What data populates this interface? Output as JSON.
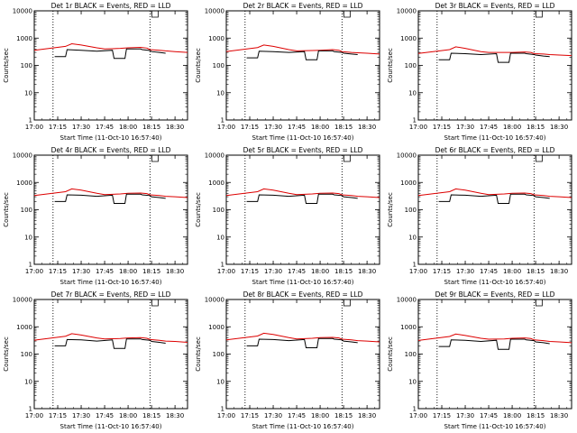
{
  "colors": {
    "events": "#000000",
    "lld": "#dd0000",
    "frame": "#000000",
    "background": "#ffffff"
  },
  "chart_data": [
    {
      "type": "line",
      "title": "Det 1r BLACK = Events, RED = LLD",
      "xlabel": "Start Time (11-Oct-10 16:57:40)",
      "ylabel": "Counts/sec",
      "yscale": "log",
      "ylim": [
        1,
        10000
      ],
      "xlim": [
        "17:00",
        "18:38"
      ],
      "x_ticks": [
        "17:00",
        "17:15",
        "17:30",
        "17:45",
        "18:00",
        "18:15",
        "18:30"
      ],
      "y_ticks": [
        "1",
        "10",
        "100",
        "1000",
        "10000"
      ],
      "vlines_dotted": [
        "17:12",
        "18:14"
      ],
      "series": [
        {
          "x": [
            "17:00",
            "17:08",
            "17:12",
            "17:20",
            "17:24",
            "17:30",
            "17:40",
            "17:45",
            "17:55",
            "18:00",
            "18:08",
            "18:12",
            "18:14",
            "18:20",
            "18:24",
            "18:30",
            "18:38"
          ],
          "values": [
            null,
            null,
            null,
            500,
            620,
            560,
            440,
            400,
            420,
            440,
            460,
            430,
            380,
            360,
            340,
            320,
            300
          ]
        },
        {
          "x": [
            "17:12",
            "17:13",
            "17:20",
            "17:21",
            "17:30",
            "17:40",
            "17:50",
            "17:51",
            "17:58",
            "17:59",
            "18:08",
            "18:09",
            "18:14",
            "18:15",
            "18:20",
            "18:24"
          ],
          "values": [
            null,
            210,
            210,
            380,
            360,
            330,
            360,
            180,
            180,
            400,
            400,
            380,
            350,
            320,
            300,
            280
          ]
        }
      ]
    },
    {
      "type": "line",
      "title": "Det 2r BLACK = Events, RED = LLD",
      "xlabel": "Start Time (11-Oct-10 16:57:40)",
      "ylabel": "Counts/sec",
      "yscale": "log",
      "ylim": [
        1,
        10000
      ],
      "xlim": [
        "17:00",
        "18:38"
      ],
      "x_ticks": [
        "17:00",
        "17:15",
        "17:30",
        "17:45",
        "18:00",
        "18:15",
        "18:30"
      ],
      "y_ticks": [
        "1",
        "10",
        "100",
        "1000",
        "10000"
      ],
      "vlines_dotted": [
        "17:12",
        "18:14"
      ],
      "series": [
        {
          "x": [
            "17:00",
            "17:08",
            "17:12",
            "17:20",
            "17:24",
            "17:30",
            "17:40",
            "17:45",
            "17:55",
            "18:00",
            "18:08",
            "18:12",
            "18:14",
            "18:20",
            "18:24",
            "18:30",
            "18:38"
          ],
          "values": [
            null,
            null,
            null,
            450,
            560,
            500,
            380,
            340,
            350,
            360,
            380,
            360,
            320,
            300,
            290,
            280,
            260
          ]
        },
        {
          "x": [
            "17:12",
            "17:13",
            "17:20",
            "17:21",
            "17:30",
            "17:40",
            "17:50",
            "17:51",
            "17:58",
            "17:59",
            "18:08",
            "18:09",
            "18:14",
            "18:15",
            "18:20",
            "18:24"
          ],
          "values": [
            null,
            190,
            190,
            330,
            320,
            300,
            320,
            160,
            160,
            340,
            340,
            320,
            300,
            280,
            260,
            250
          ]
        }
      ]
    },
    {
      "type": "line",
      "title": "Det 3r BLACK = Events, RED = LLD",
      "xlabel": "Start Time (11-Oct-10 16:57:40)",
      "ylabel": "Counts/sec",
      "yscale": "log",
      "ylim": [
        1,
        10000
      ],
      "xlim": [
        "17:00",
        "18:38"
      ],
      "x_ticks": [
        "17:00",
        "17:15",
        "17:30",
        "17:45",
        "18:00",
        "18:15",
        "18:30"
      ],
      "y_ticks": [
        "1",
        "10",
        "100",
        "1000",
        "10000"
      ],
      "vlines_dotted": [
        "17:12",
        "18:14"
      ],
      "series": [
        {
          "x": [
            "17:00",
            "17:08",
            "17:12",
            "17:20",
            "17:24",
            "17:30",
            "17:40",
            "17:45",
            "17:55",
            "18:00",
            "18:08",
            "18:12",
            "18:14",
            "18:20",
            "18:24",
            "18:30",
            "18:38"
          ],
          "values": [
            null,
            null,
            null,
            380,
            480,
            420,
            320,
            300,
            300,
            300,
            310,
            300,
            270,
            260,
            250,
            240,
            230
          ]
        },
        {
          "x": [
            "17:12",
            "17:13",
            "17:20",
            "17:21",
            "17:30",
            "17:40",
            "17:50",
            "17:51",
            "17:58",
            "17:59",
            "18:08",
            "18:09",
            "18:14",
            "18:15",
            "18:20",
            "18:24"
          ],
          "values": [
            null,
            160,
            160,
            280,
            270,
            250,
            270,
            130,
            130,
            280,
            280,
            270,
            250,
            240,
            220,
            210
          ]
        }
      ]
    },
    {
      "type": "line",
      "title": "Det 4r BLACK = Events, RED = LLD",
      "xlabel": "Start Time (11-Oct-10 16:57:40)",
      "ylabel": "Counts/sec",
      "yscale": "log",
      "ylim": [
        1,
        10000
      ],
      "xlim": [
        "17:00",
        "18:38"
      ],
      "x_ticks": [
        "17:00",
        "17:15",
        "17:30",
        "17:45",
        "18:00",
        "18:15",
        "18:30"
      ],
      "y_ticks": [
        "1",
        "10",
        "100",
        "1000",
        "10000"
      ],
      "vlines_dotted": [
        "17:12",
        "18:14"
      ],
      "series": [
        {
          "x": [
            "17:00",
            "17:08",
            "17:12",
            "17:20",
            "17:24",
            "17:30",
            "17:40",
            "17:45",
            "17:55",
            "18:00",
            "18:08",
            "18:12",
            "18:14",
            "18:20",
            "18:24",
            "18:30",
            "18:38"
          ],
          "values": [
            null,
            null,
            null,
            460,
            580,
            520,
            400,
            360,
            380,
            400,
            410,
            390,
            350,
            330,
            310,
            300,
            280
          ]
        },
        {
          "x": [
            "17:12",
            "17:13",
            "17:20",
            "17:21",
            "17:30",
            "17:40",
            "17:50",
            "17:51",
            "17:58",
            "17:59",
            "18:08",
            "18:09",
            "18:14",
            "18:15",
            "18:20",
            "18:24"
          ],
          "values": [
            null,
            200,
            200,
            350,
            340,
            310,
            340,
            170,
            170,
            370,
            370,
            350,
            330,
            300,
            280,
            260
          ]
        }
      ]
    },
    {
      "type": "line",
      "title": "Det 5r BLACK = Events, RED = LLD",
      "xlabel": "Start Time (11-Oct-10 16:57:40)",
      "ylabel": "Counts/sec",
      "yscale": "log",
      "ylim": [
        1,
        10000
      ],
      "xlim": [
        "17:00",
        "18:38"
      ],
      "x_ticks": [
        "17:00",
        "17:15",
        "17:30",
        "17:45",
        "18:00",
        "18:15",
        "18:30"
      ],
      "y_ticks": [
        "1",
        "10",
        "100",
        "1000",
        "10000"
      ],
      "vlines_dotted": [
        "17:12",
        "18:14"
      ],
      "series": [
        {
          "x": [
            "17:00",
            "17:08",
            "17:12",
            "17:20",
            "17:24",
            "17:30",
            "17:40",
            "17:45",
            "17:55",
            "18:00",
            "18:08",
            "18:12",
            "18:14",
            "18:20",
            "18:24",
            "18:30",
            "18:38"
          ],
          "values": [
            null,
            null,
            null,
            460,
            580,
            520,
            400,
            360,
            380,
            400,
            410,
            390,
            350,
            330,
            310,
            300,
            280
          ]
        },
        {
          "x": [
            "17:12",
            "17:13",
            "17:20",
            "17:21",
            "17:30",
            "17:40",
            "17:50",
            "17:51",
            "17:58",
            "17:59",
            "18:08",
            "18:09",
            "18:14",
            "18:15",
            "18:20",
            "18:24"
          ],
          "values": [
            null,
            200,
            200,
            350,
            340,
            310,
            340,
            170,
            170,
            370,
            370,
            350,
            330,
            300,
            280,
            260
          ]
        }
      ]
    },
    {
      "type": "line",
      "title": "Det 6r BLACK = Events, RED = LLD",
      "xlabel": "Start Time (11-Oct-10 16:57:40)",
      "ylabel": "Counts/sec",
      "yscale": "log",
      "ylim": [
        1,
        10000
      ],
      "xlim": [
        "17:00",
        "18:38"
      ],
      "x_ticks": [
        "17:00",
        "17:15",
        "17:30",
        "17:45",
        "18:00",
        "18:15",
        "18:30"
      ],
      "y_ticks": [
        "1",
        "10",
        "100",
        "1000",
        "10000"
      ],
      "vlines_dotted": [
        "17:12",
        "18:14"
      ],
      "series": [
        {
          "x": [
            "17:00",
            "17:08",
            "17:12",
            "17:20",
            "17:24",
            "17:30",
            "17:40",
            "17:45",
            "17:55",
            "18:00",
            "18:08",
            "18:12",
            "18:14",
            "18:20",
            "18:24",
            "18:30",
            "18:38"
          ],
          "values": [
            null,
            null,
            null,
            460,
            580,
            520,
            400,
            360,
            380,
            400,
            410,
            390,
            350,
            330,
            310,
            300,
            280
          ]
        },
        {
          "x": [
            "17:12",
            "17:13",
            "17:20",
            "17:21",
            "17:30",
            "17:40",
            "17:50",
            "17:51",
            "17:58",
            "17:59",
            "18:08",
            "18:09",
            "18:14",
            "18:15",
            "18:20",
            "18:24"
          ],
          "values": [
            null,
            200,
            200,
            350,
            340,
            310,
            340,
            170,
            170,
            370,
            370,
            350,
            330,
            300,
            280,
            260
          ]
        }
      ]
    },
    {
      "type": "line",
      "title": "Det 7r BLACK = Events, RED = LLD",
      "xlabel": "Start Time (11-Oct-10 16:57:40)",
      "ylabel": "Counts/sec",
      "yscale": "log",
      "ylim": [
        1,
        10000
      ],
      "xlim": [
        "17:00",
        "18:38"
      ],
      "x_ticks": [
        "17:00",
        "17:15",
        "17:30",
        "17:45",
        "18:00",
        "18:15",
        "18:30"
      ],
      "y_ticks": [
        "1",
        "10",
        "100",
        "1000",
        "10000"
      ],
      "vlines_dotted": [
        "17:12",
        "18:14"
      ],
      "series": [
        {
          "x": [
            "17:00",
            "17:08",
            "17:12",
            "17:20",
            "17:24",
            "17:30",
            "17:40",
            "17:45",
            "17:55",
            "18:00",
            "18:08",
            "18:12",
            "18:14",
            "18:20",
            "18:24",
            "18:30",
            "18:38"
          ],
          "values": [
            null,
            null,
            null,
            450,
            560,
            500,
            390,
            360,
            370,
            390,
            400,
            380,
            340,
            320,
            300,
            290,
            270
          ]
        },
        {
          "x": [
            "17:12",
            "17:13",
            "17:20",
            "17:21",
            "17:30",
            "17:40",
            "17:50",
            "17:51",
            "17:58",
            "17:59",
            "18:08",
            "18:09",
            "18:14",
            "18:15",
            "18:20",
            "18:24"
          ],
          "values": [
            null,
            200,
            200,
            340,
            330,
            300,
            330,
            160,
            160,
            360,
            360,
            340,
            320,
            290,
            270,
            250
          ]
        }
      ]
    },
    {
      "type": "line",
      "title": "Det 8r BLACK = Events, RED = LLD",
      "xlabel": "Start Time (11-Oct-10 16:57:40)",
      "ylabel": "Counts/sec",
      "yscale": "log",
      "ylim": [
        1,
        10000
      ],
      "xlim": [
        "17:00",
        "18:38"
      ],
      "x_ticks": [
        "17:00",
        "17:15",
        "17:30",
        "17:45",
        "18:00",
        "18:15",
        "18:30"
      ],
      "y_ticks": [
        "1",
        "10",
        "100",
        "1000",
        "10000"
      ],
      "vlines_dotted": [
        "17:12",
        "18:14"
      ],
      "series": [
        {
          "x": [
            "17:00",
            "17:08",
            "17:12",
            "17:20",
            "17:24",
            "17:30",
            "17:40",
            "17:45",
            "17:55",
            "18:00",
            "18:08",
            "18:12",
            "18:14",
            "18:20",
            "18:24",
            "18:30",
            "18:38"
          ],
          "values": [
            null,
            null,
            null,
            460,
            580,
            520,
            400,
            360,
            380,
            400,
            410,
            390,
            350,
            330,
            310,
            300,
            280
          ]
        },
        {
          "x": [
            "17:12",
            "17:13",
            "17:20",
            "17:21",
            "17:30",
            "17:40",
            "17:50",
            "17:51",
            "17:58",
            "17:59",
            "18:08",
            "18:09",
            "18:14",
            "18:15",
            "18:20",
            "18:24"
          ],
          "values": [
            null,
            200,
            200,
            350,
            340,
            310,
            340,
            170,
            170,
            370,
            370,
            350,
            330,
            300,
            280,
            260
          ]
        }
      ]
    },
    {
      "type": "line",
      "title": "Det 9r BLACK = Events, RED = LLD",
      "xlabel": "Start Time (11-Oct-10 16:57:40)",
      "ylabel": "Counts/sec",
      "yscale": "log",
      "ylim": [
        1,
        10000
      ],
      "xlim": [
        "17:00",
        "18:38"
      ],
      "x_ticks": [
        "17:00",
        "17:15",
        "17:30",
        "17:45",
        "18:00",
        "18:15",
        "18:30"
      ],
      "y_ticks": [
        "1",
        "10",
        "100",
        "1000",
        "10000"
      ],
      "vlines_dotted": [
        "17:12",
        "18:14"
      ],
      "series": [
        {
          "x": [
            "17:00",
            "17:08",
            "17:12",
            "17:20",
            "17:24",
            "17:30",
            "17:40",
            "17:45",
            "17:55",
            "18:00",
            "18:08",
            "18:12",
            "18:14",
            "18:20",
            "18:24",
            "18:30",
            "18:38"
          ],
          "values": [
            null,
            null,
            null,
            440,
            540,
            480,
            380,
            350,
            360,
            380,
            390,
            370,
            330,
            310,
            290,
            280,
            260
          ]
        },
        {
          "x": [
            "17:12",
            "17:13",
            "17:20",
            "17:21",
            "17:30",
            "17:40",
            "17:50",
            "17:51",
            "17:58",
            "17:59",
            "18:08",
            "18:09",
            "18:14",
            "18:15",
            "18:20",
            "18:24"
          ],
          "values": [
            null,
            190,
            190,
            330,
            320,
            290,
            320,
            150,
            150,
            350,
            350,
            330,
            310,
            280,
            260,
            240
          ]
        }
      ]
    }
  ]
}
